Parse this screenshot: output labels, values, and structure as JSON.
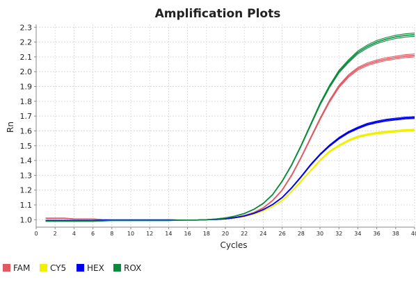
{
  "chart_data": {
    "type": "line",
    "title": "Amplification Plots",
    "xlabel": "Cycles",
    "ylabel": "Rn",
    "xlim": [
      0,
      40
    ],
    "ylim": [
      0.95,
      2.32
    ],
    "xticks": [
      0,
      2,
      4,
      6,
      8,
      10,
      12,
      14,
      16,
      18,
      20,
      22,
      24,
      26,
      28,
      30,
      32,
      34,
      36,
      38,
      40
    ],
    "yticks": [
      1.0,
      1.1,
      1.2,
      1.3,
      1.4,
      1.5,
      1.6,
      1.7,
      1.8,
      1.9,
      2.0,
      2.1,
      2.2,
      2.3
    ],
    "grid": true,
    "legend_position": "bottom-left",
    "x": [
      1,
      2,
      3,
      4,
      5,
      6,
      7,
      8,
      9,
      10,
      11,
      12,
      13,
      14,
      15,
      16,
      17,
      18,
      19,
      20,
      21,
      22,
      23,
      24,
      25,
      26,
      27,
      28,
      29,
      30,
      31,
      32,
      33,
      34,
      35,
      36,
      37,
      38,
      39,
      40
    ],
    "series": [
      {
        "name": "FAM",
        "color": "#e05a63",
        "values": [
          1.01,
          1.01,
          1.01,
          1.005,
          1.005,
          1.005,
          1.0,
          1.0,
          1.0,
          1.0,
          1.0,
          1.0,
          1.0,
          1.0,
          0.998,
          0.998,
          0.998,
          1.0,
          1.003,
          1.008,
          1.015,
          1.028,
          1.048,
          1.08,
          1.13,
          1.2,
          1.3,
          1.42,
          1.55,
          1.68,
          1.8,
          1.9,
          1.97,
          2.02,
          2.05,
          2.07,
          2.085,
          2.095,
          2.105,
          2.11
        ]
      },
      {
        "name": "CY5",
        "color": "#f0f000",
        "values": [
          0.995,
          0.995,
          0.995,
          0.995,
          0.995,
          0.995,
          0.997,
          0.998,
          0.998,
          0.998,
          0.998,
          0.998,
          0.998,
          0.998,
          0.998,
          0.998,
          0.998,
          1.0,
          1.001,
          1.005,
          1.012,
          1.022,
          1.038,
          1.06,
          1.09,
          1.13,
          1.19,
          1.26,
          1.33,
          1.4,
          1.46,
          1.5,
          1.535,
          1.56,
          1.575,
          1.585,
          1.592,
          1.598,
          1.603,
          1.606
        ]
      },
      {
        "name": "HEX",
        "color": "#0000ee",
        "values": [
          0.995,
          0.995,
          0.995,
          0.995,
          0.995,
          0.995,
          0.997,
          0.998,
          0.998,
          0.998,
          0.998,
          0.998,
          0.998,
          0.998,
          0.998,
          0.998,
          0.998,
          1.0,
          1.002,
          1.006,
          1.014,
          1.025,
          1.043,
          1.068,
          1.103,
          1.15,
          1.215,
          1.29,
          1.37,
          1.44,
          1.5,
          1.55,
          1.59,
          1.62,
          1.645,
          1.66,
          1.672,
          1.68,
          1.687,
          1.69
        ]
      },
      {
        "name": "ROX",
        "color": "#0a8a3c",
        "values": [
          0.99,
          0.99,
          0.99,
          0.99,
          0.99,
          0.99,
          0.992,
          0.995,
          0.995,
          0.995,
          0.995,
          0.995,
          0.995,
          0.995,
          0.997,
          0.998,
          0.998,
          1.0,
          1.005,
          1.012,
          1.024,
          1.042,
          1.07,
          1.11,
          1.17,
          1.26,
          1.37,
          1.5,
          1.64,
          1.78,
          1.9,
          2.0,
          2.07,
          2.13,
          2.17,
          2.2,
          2.22,
          2.235,
          2.245,
          2.25
        ]
      }
    ]
  }
}
